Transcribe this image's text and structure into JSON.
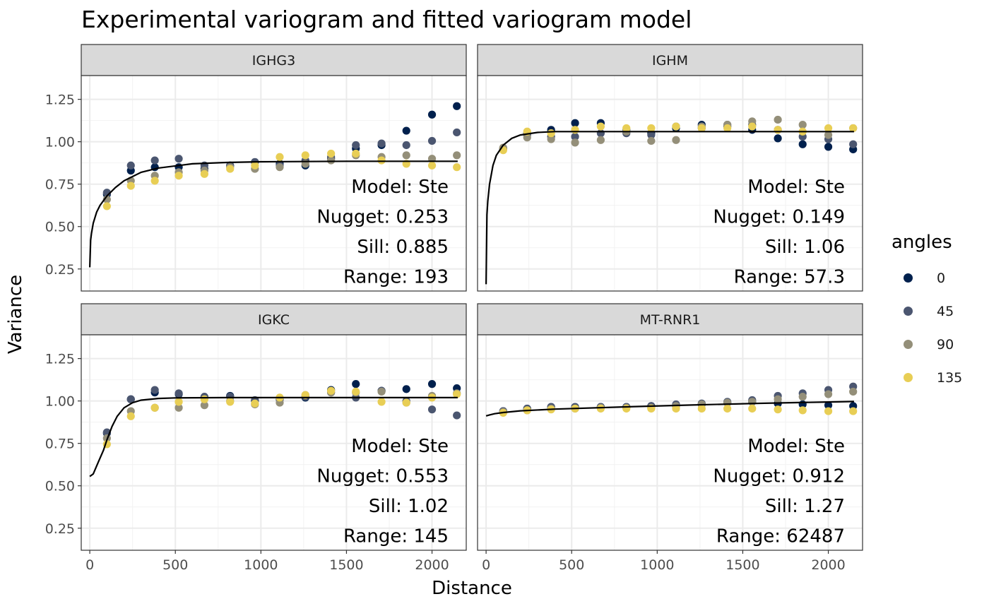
{
  "chart_data": {
    "type": "scatter",
    "title": "Experimental variogram and fitted variogram model",
    "xlabel": "Distance",
    "ylabel": "Variance",
    "xlim": [
      -50,
      2200
    ],
    "ylim": [
      0.12,
      1.39
    ],
    "x_ticks": [
      0,
      500,
      1000,
      1500,
      2000
    ],
    "y_ticks": [
      0.25,
      0.5,
      0.75,
      1.0,
      1.25
    ],
    "x_tick_labels": [
      "0",
      "500",
      "1000",
      "1500",
      "2000"
    ],
    "y_tick_labels": [
      "0.25",
      "0.50",
      "0.75",
      "1.00",
      "1.25"
    ],
    "grid": true,
    "legend": {
      "title": "angles",
      "position": "right",
      "entries": [
        {
          "label": "0",
          "color": "#00204d"
        },
        {
          "label": "45",
          "color": "#4b5670"
        },
        {
          "label": "90",
          "color": "#948f79"
        },
        {
          "label": "135",
          "color": "#e8ce55"
        }
      ]
    },
    "x": [
      100,
      240,
      380,
      520,
      670,
      820,
      965,
      1110,
      1260,
      1410,
      1555,
      1705,
      1850,
      2000,
      2145
    ],
    "panels": [
      {
        "name": "IGHG3",
        "annotations": [
          "Model: Ste",
          "Nugget: 0.253",
          "Sill: 0.885",
          "Range: 193"
        ],
        "fit": {
          "x": [
            0,
            5,
            10,
            20,
            40,
            60,
            100,
            150,
            200,
            300,
            400,
            600,
            800,
            1000,
            1500,
            2150
          ],
          "y": [
            0.26,
            0.42,
            0.46,
            0.52,
            0.585,
            0.625,
            0.68,
            0.73,
            0.77,
            0.82,
            0.845,
            0.87,
            0.878,
            0.882,
            0.885,
            0.885
          ]
        },
        "series": [
          {
            "angle": "0",
            "values": [
              0.69,
              0.83,
              0.85,
              0.85,
              0.84,
              0.86,
              0.88,
              0.87,
              0.86,
              0.9,
              0.96,
              0.98,
              1.065,
              1.16,
              1.21
            ]
          },
          {
            "angle": "45",
            "values": [
              0.7,
              0.86,
              0.89,
              0.9,
              0.86,
              0.86,
              0.88,
              0.86,
              0.89,
              0.91,
              0.98,
              0.99,
              0.98,
              1.005,
              1.055
            ]
          },
          {
            "angle": "90",
            "values": [
              0.66,
              0.77,
              0.8,
              0.82,
              0.83,
              0.85,
              0.84,
              0.85,
              0.87,
              0.89,
              0.92,
              0.91,
              0.92,
              0.9,
              0.92
            ]
          },
          {
            "angle": "135",
            "values": [
              0.62,
              0.74,
              0.77,
              0.8,
              0.81,
              0.84,
              0.86,
              0.91,
              0.92,
              0.93,
              0.93,
              0.89,
              0.87,
              0.86,
              0.85
            ]
          }
        ]
      },
      {
        "name": "IGHM",
        "annotations": [
          "Model: Ste",
          "Nugget: 0.149",
          "Sill: 1.06",
          "Range: 57.3"
        ],
        "fit": {
          "x": [
            0,
            5,
            10,
            20,
            40,
            60,
            100,
            150,
            200,
            300,
            400,
            600,
            1000,
            1500,
            2150
          ],
          "y": [
            0.16,
            0.57,
            0.65,
            0.75,
            0.86,
            0.92,
            0.98,
            1.02,
            1.04,
            1.055,
            1.06,
            1.06,
            1.06,
            1.06,
            1.06
          ]
        },
        "series": [
          {
            "angle": "0",
            "values": [
              0.96,
              1.05,
              1.07,
              1.11,
              1.11,
              1.07,
              1.05,
              1.08,
              1.1,
              1.09,
              1.07,
              1.02,
              0.985,
              0.97,
              0.955
            ]
          },
          {
            "angle": "45",
            "values": [
              0.96,
              1.04,
              1.03,
              1.03,
              1.05,
              1.05,
              1.04,
              1.09,
              1.08,
              1.1,
              1.1,
              1.07,
              1.03,
              1.015,
              0.985
            ]
          },
          {
            "angle": "90",
            "values": [
              0.965,
              1.025,
              1.015,
              0.995,
              1.01,
              1.06,
              1.005,
              1.01,
              1.09,
              1.1,
              1.12,
              1.13,
              1.1,
              1.04,
              1.08
            ]
          },
          {
            "angle": "135",
            "values": [
              0.95,
              1.06,
              1.05,
              1.07,
              1.09,
              1.08,
              1.08,
              1.09,
              1.08,
              1.08,
              1.09,
              1.07,
              1.06,
              1.08,
              1.08
            ]
          }
        ]
      },
      {
        "name": "IGKC",
        "annotations": [
          "Model: Ste",
          "Nugget: 0.553",
          "Sill: 1.02",
          "Range: 145"
        ],
        "fit": {
          "x": [
            0,
            20,
            50,
            80,
            100,
            130,
            160,
            200,
            250,
            300,
            400,
            500,
            800,
            1500,
            2150
          ],
          "y": [
            0.555,
            0.57,
            0.64,
            0.71,
            0.77,
            0.85,
            0.91,
            0.96,
            0.99,
            1.005,
            1.015,
            1.018,
            1.02,
            1.02,
            1.02
          ]
        },
        "series": [
          {
            "angle": "0",
            "values": [
              0.81,
              1.01,
              1.05,
              1.04,
              1.02,
              1.03,
              1.0,
              1.01,
              1.02,
              1.065,
              1.1,
              1.06,
              1.07,
              1.1,
              1.075
            ]
          },
          {
            "angle": "45",
            "values": [
              0.815,
              1.01,
              1.065,
              1.045,
              1.025,
              1.025,
              1.005,
              1.01,
              1.025,
              1.05,
              1.02,
              1.06,
              1.0,
              0.95,
              0.915
            ]
          },
          {
            "angle": "90",
            "values": [
              0.78,
              0.94,
              0.96,
              0.96,
              0.975,
              1.0,
              0.98,
              0.99,
              1.035,
              1.05,
              1.05,
              1.055,
              0.99,
              1.03,
              1.045
            ]
          },
          {
            "angle": "135",
            "values": [
              0.745,
              0.91,
              0.96,
              0.995,
              1.01,
              0.995,
              0.985,
              1.02,
              1.035,
              1.06,
              1.055,
              0.995,
              0.99,
              1.02,
              1.04
            ]
          }
        ]
      },
      {
        "name": "MT-RNR1",
        "annotations": [
          "Model: Ste",
          "Nugget: 0.912",
          "Sill: 1.27",
          "Range: 62487"
        ],
        "fit": {
          "x": [
            0,
            20,
            50,
            100,
            200,
            400,
            800,
            1200,
            1600,
            2000,
            2150
          ],
          "y": [
            0.912,
            0.918,
            0.925,
            0.932,
            0.942,
            0.952,
            0.965,
            0.976,
            0.986,
            0.994,
            0.997
          ]
        },
        "series": [
          {
            "angle": "0",
            "values": [
              0.94,
              0.955,
              0.965,
              0.965,
              0.965,
              0.965,
              0.97,
              0.97,
              0.98,
              0.99,
              0.995,
              0.985,
              0.98,
              0.975,
              0.97
            ]
          },
          {
            "angle": "45",
            "values": [
              0.94,
              0.955,
              0.965,
              0.965,
              0.965,
              0.965,
              0.97,
              0.98,
              0.985,
              0.995,
              1.005,
              1.03,
              1.045,
              1.065,
              1.085
            ]
          },
          {
            "angle": "90",
            "values": [
              0.935,
              0.945,
              0.955,
              0.955,
              0.96,
              0.96,
              0.96,
              0.97,
              0.98,
              0.99,
              0.995,
              1.01,
              1.025,
              1.04,
              1.055
            ]
          },
          {
            "angle": "135",
            "values": [
              0.93,
              0.945,
              0.95,
              0.955,
              0.955,
              0.955,
              0.955,
              0.955,
              0.955,
              0.955,
              0.955,
              0.95,
              0.945,
              0.94,
              0.94
            ]
          }
        ]
      }
    ]
  }
}
